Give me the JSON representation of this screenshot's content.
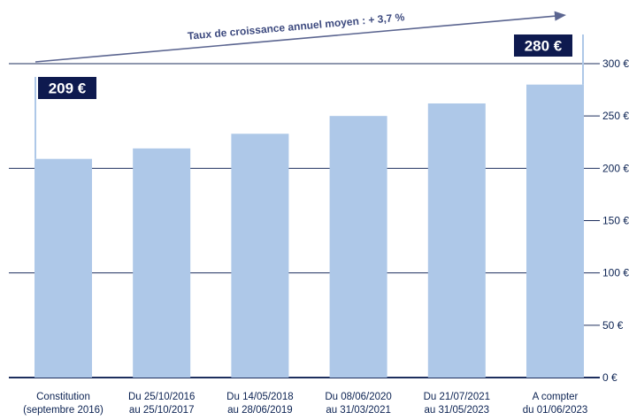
{
  "chart_data": {
    "type": "bar",
    "categories": [
      [
        "Constitution",
        "(septembre 2016)"
      ],
      [
        "Du 25/10/2016",
        "au 25/10/2017"
      ],
      [
        "Du 14/05/2018",
        "au 28/06/2019"
      ],
      [
        "Du 08/06/2020",
        "au 31/03/2021"
      ],
      [
        "Du 21/07/2021",
        "au 31/05/2023"
      ],
      [
        "A compter",
        "du 01/06/2023"
      ]
    ],
    "values": [
      209,
      219,
      233,
      250,
      262,
      280
    ],
    "ylim": [
      0,
      300
    ],
    "yticks": [
      "0 €",
      "50 €",
      "100 €",
      "150 €",
      "200 €",
      "250 €",
      "300 €"
    ],
    "annotation": "Taux de croissance annuel moyen : + 3,7 %",
    "highlight_labels": [
      "209 €",
      "280 €"
    ],
    "colors": {
      "bar": "#aec8e8",
      "grid": "#1d2f5e",
      "text": "#0b2252",
      "label_bg": "#0e1a4f",
      "arrow": "#5b6590"
    }
  }
}
